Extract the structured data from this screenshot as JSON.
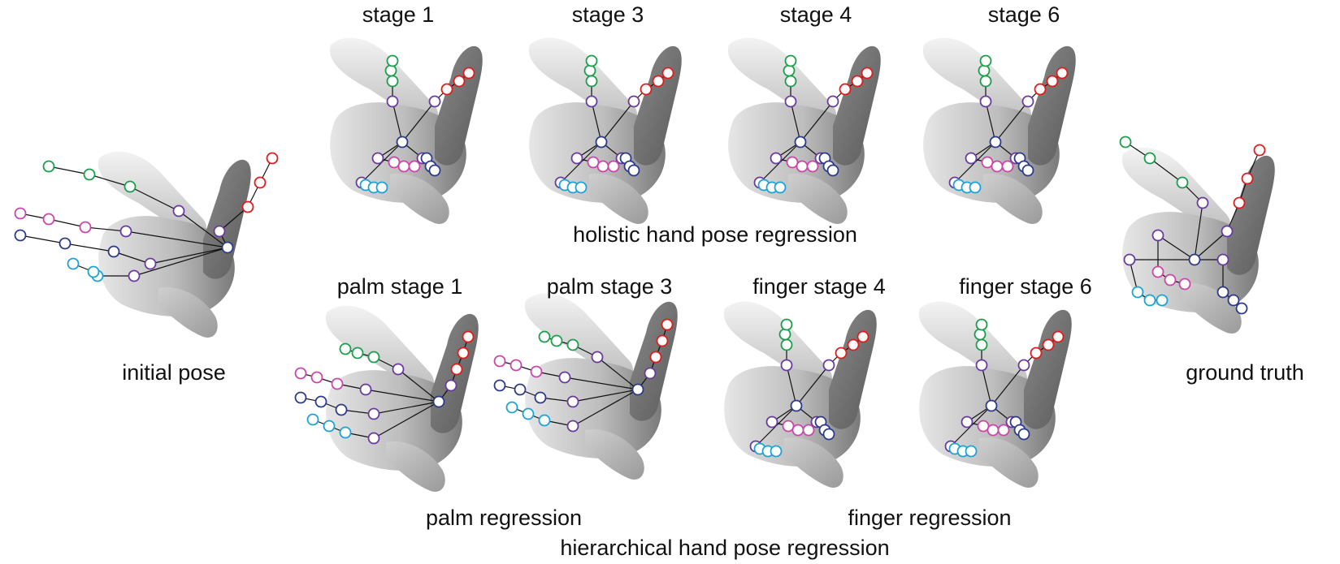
{
  "colors": {
    "thumb": "#1aa3d6",
    "index": "#cc44aa",
    "middle": "#2b3a8c",
    "ring": "#1a9e4a",
    "pinky": "#e01b1b",
    "palm": "#6a3aa0",
    "wrist": "#2b3a8c",
    "bone": "#111111"
  },
  "labels": {
    "initial_pose": "initial pose",
    "ground_truth": "ground truth",
    "holistic": "holistic hand pose regression",
    "palm_regression": "palm regression",
    "finger_regression": "finger regression",
    "hierarchical": "hierarchical hand pose regression"
  },
  "panels": [
    {
      "id": "initial",
      "title": ""
    },
    {
      "id": "h1",
      "title": "stage 1"
    },
    {
      "id": "h3",
      "title": "stage 3"
    },
    {
      "id": "h4",
      "title": "stage 4"
    },
    {
      "id": "h6",
      "title": "stage 6"
    },
    {
      "id": "p1",
      "title": "palm stage 1"
    },
    {
      "id": "p3",
      "title": "palm stage 3"
    },
    {
      "id": "f4",
      "title": "finger stage 4"
    },
    {
      "id": "f6",
      "title": "finger stage 6"
    },
    {
      "id": "gt",
      "title": ""
    }
  ]
}
